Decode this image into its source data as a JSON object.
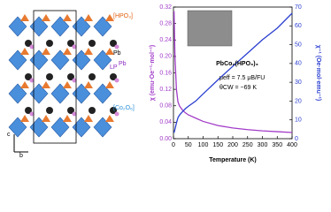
{
  "structure_labels": {
    "hpo3": "[HPO₃]",
    "pb": "Pb",
    "lp": "LP",
    "lp_sup": "Pb",
    "co2o6": "[Co₂O₆]",
    "axis_c": "c",
    "axis_b": "b"
  },
  "chart_data": {
    "type": "line",
    "title": "PbCo₂(HPO₃)₃",
    "annotations": [
      "μeff = 7.5 μB/FU",
      "θCW = −69 K"
    ],
    "x_label": "Temperature (K)",
    "y_label": "χ (emu·Oe⁻¹·mol⁻¹)",
    "y2_label": "χ⁻¹ (Oe·mol·emu⁻¹)",
    "x": [
      2,
      5,
      10,
      15,
      20,
      30,
      40,
      50,
      75,
      100,
      150,
      200,
      250,
      300,
      350,
      400
    ],
    "series": [
      {
        "name": "χ",
        "color": "#a23cc8",
        "values": [
          0.31,
          0.2,
          0.12,
          0.09,
          0.08,
          0.07,
          0.063,
          0.058,
          0.05,
          0.042,
          0.032,
          0.026,
          0.022,
          0.019,
          0.017,
          0.015
        ]
      },
      {
        "name": "χ⁻¹",
        "color": "#2a3fd0",
        "axis": "y2",
        "values": [
          3.2,
          5,
          8.3,
          11.1,
          12.5,
          14.3,
          15.9,
          17.2,
          20,
          23.8,
          31.3,
          38.5,
          45.5,
          52.6,
          58.8,
          66.7
        ]
      }
    ],
    "xlim": [
      0,
      400
    ],
    "xticks": [
      0,
      50,
      100,
      150,
      200,
      250,
      300,
      350,
      400
    ],
    "ylim": [
      0,
      0.32
    ],
    "yticks": [
      {
        "value": 0,
        "label": "0.00"
      },
      {
        "value": 0.04,
        "label": "0.04"
      },
      {
        "value": 0.08,
        "label": "0.08"
      },
      {
        "value": 0.12,
        "label": "0.12"
      },
      {
        "value": 0.16,
        "label": "0.16"
      },
      {
        "value": 0.2,
        "label": "0.20"
      },
      {
        "value": 0.24,
        "label": "0.24"
      },
      {
        "value": 0.28,
        "label": "0.28"
      },
      {
        "value": 0.32,
        "label": "0.32"
      }
    ],
    "y2lim": [
      0,
      70
    ],
    "y2ticks": [
      0,
      10,
      20,
      30,
      40,
      50,
      60,
      70
    ]
  }
}
